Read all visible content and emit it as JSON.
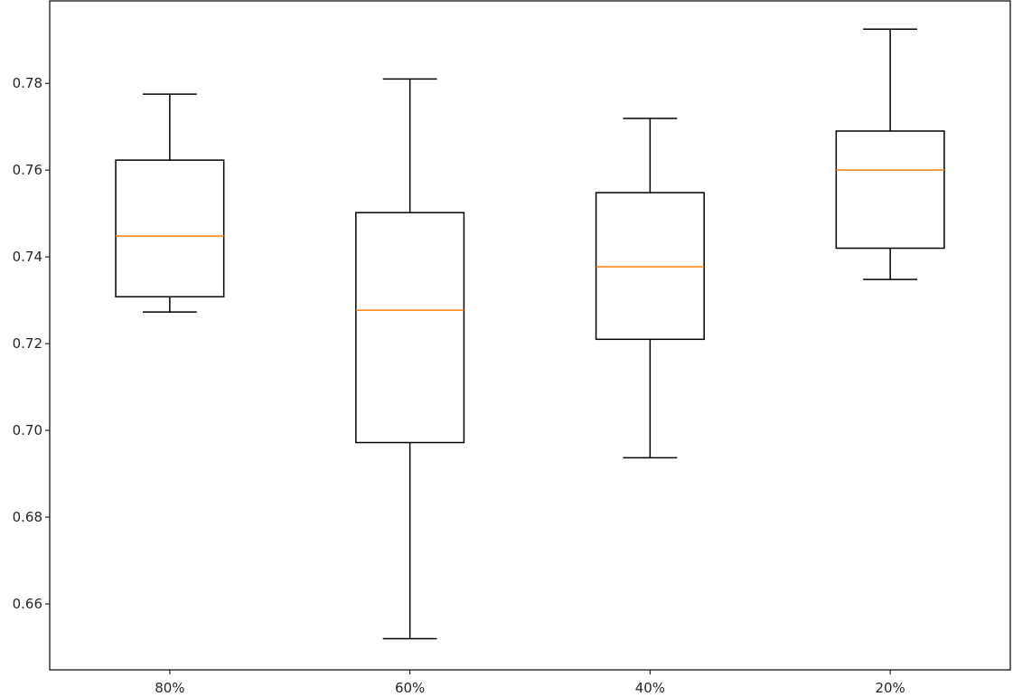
{
  "chart_data": {
    "type": "boxplot",
    "categories": [
      "80%",
      "60%",
      "40%",
      "20%"
    ],
    "boxes": [
      {
        "category": "80%",
        "whisker_low": 0.7273,
        "q1": 0.7308,
        "median": 0.7448,
        "q3": 0.7623,
        "whisker_high": 0.7775
      },
      {
        "category": "60%",
        "whisker_low": 0.652,
        "q1": 0.6972,
        "median": 0.7277,
        "q3": 0.7502,
        "whisker_high": 0.781
      },
      {
        "category": "40%",
        "whisker_low": 0.6937,
        "q1": 0.721,
        "median": 0.7377,
        "q3": 0.7548,
        "whisker_high": 0.7719
      },
      {
        "category": "20%",
        "whisker_low": 0.7348,
        "q1": 0.742,
        "median": 0.76,
        "q3": 0.769,
        "whisker_high": 0.7925
      }
    ],
    "yticks": [
      "0.66",
      "0.68",
      "0.70",
      "0.72",
      "0.74",
      "0.76",
      "0.78"
    ],
    "ylim": [
      0.6448,
      0.799
    ],
    "title": "",
    "xlabel": "",
    "ylabel": "",
    "grid": false,
    "colors": {
      "box": "#000000",
      "median": "#ff7f0e"
    }
  }
}
